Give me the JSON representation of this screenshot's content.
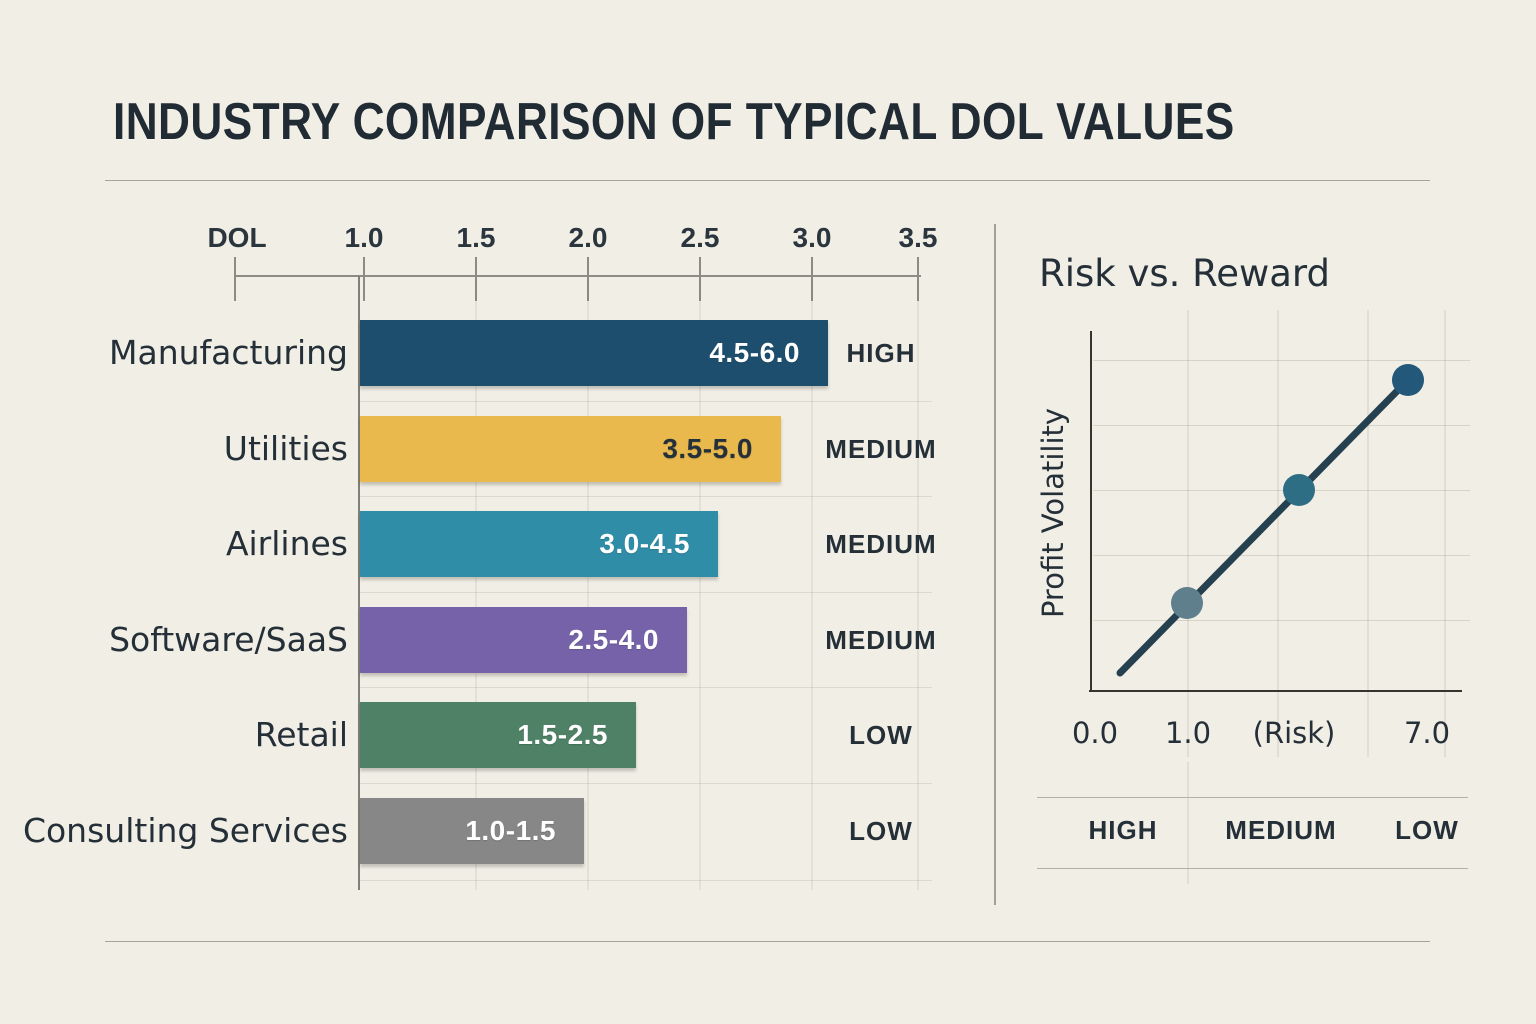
{
  "title": "INDUSTRY COMPARISON OF TYPICAL DOL VALUES",
  "colors": {
    "background": "#f1eee6",
    "ink": "#242f38",
    "divider": "#a6a39a",
    "trend_line": "#25404f"
  },
  "chart_data": [
    {
      "type": "bar",
      "title": "INDUSTRY COMPARISON OF TYPICAL DOL VALUES",
      "axis_label": "DOL",
      "x_ticks": [
        "1.0",
        "1.5",
        "2.0",
        "2.5",
        "3.0",
        "3.5"
      ],
      "xlim": [
        1.0,
        3.5
      ],
      "grid": true,
      "rows": [
        {
          "category": "Manufacturing",
          "dol_range": "4.5-6.0",
          "rating": "HIGH",
          "color": "#1d4e6e",
          "value_text_color": "#ffffff",
          "bar_end": 3.09
        },
        {
          "category": "Utilities",
          "dol_range": "3.5-5.0",
          "rating": "MEDIUM",
          "color": "#e9b94d",
          "value_text_color": "#25313a",
          "bar_end": 2.88
        },
        {
          "category": "Airlines",
          "dol_range": "3.0-4.5",
          "rating": "MEDIUM",
          "color": "#2f8da7",
          "value_text_color": "#ffffff",
          "bar_end": 2.6
        },
        {
          "category": "Software/SaaS",
          "dol_range": "2.5-4.0",
          "rating": "MEDIUM",
          "color": "#7562a8",
          "value_text_color": "#ffffff",
          "bar_end": 2.46
        },
        {
          "category": "Retail",
          "dol_range": "1.5-2.5",
          "rating": "LOW",
          "color": "#4f8166",
          "value_text_color": "#ffffff",
          "bar_end": 2.23
        },
        {
          "category": "Consulting Services",
          "dol_range": "1.0-1.5",
          "rating": "LOW",
          "color": "#878787",
          "value_text_color": "#ffffff",
          "bar_end": 2.0
        }
      ]
    },
    {
      "type": "scatter",
      "title": "Risk vs. Reward",
      "ylabel": "Profit Volatility",
      "x_ticks": [
        "0.0",
        "1.0",
        "(Risk)",
        "7.0"
      ],
      "points": [
        {
          "x": 1.0,
          "profit_volatility": "low",
          "color": "#5f7f8c"
        },
        {
          "x": 4.0,
          "profit_volatility": "medium",
          "color": "#2e6e84"
        },
        {
          "x": 7.0,
          "profit_volatility": "high",
          "color": "#24587a"
        }
      ],
      "trend_line": true,
      "grid": true,
      "footer_labels": [
        "HIGH",
        "MEDIUM",
        "LOW"
      ]
    }
  ]
}
